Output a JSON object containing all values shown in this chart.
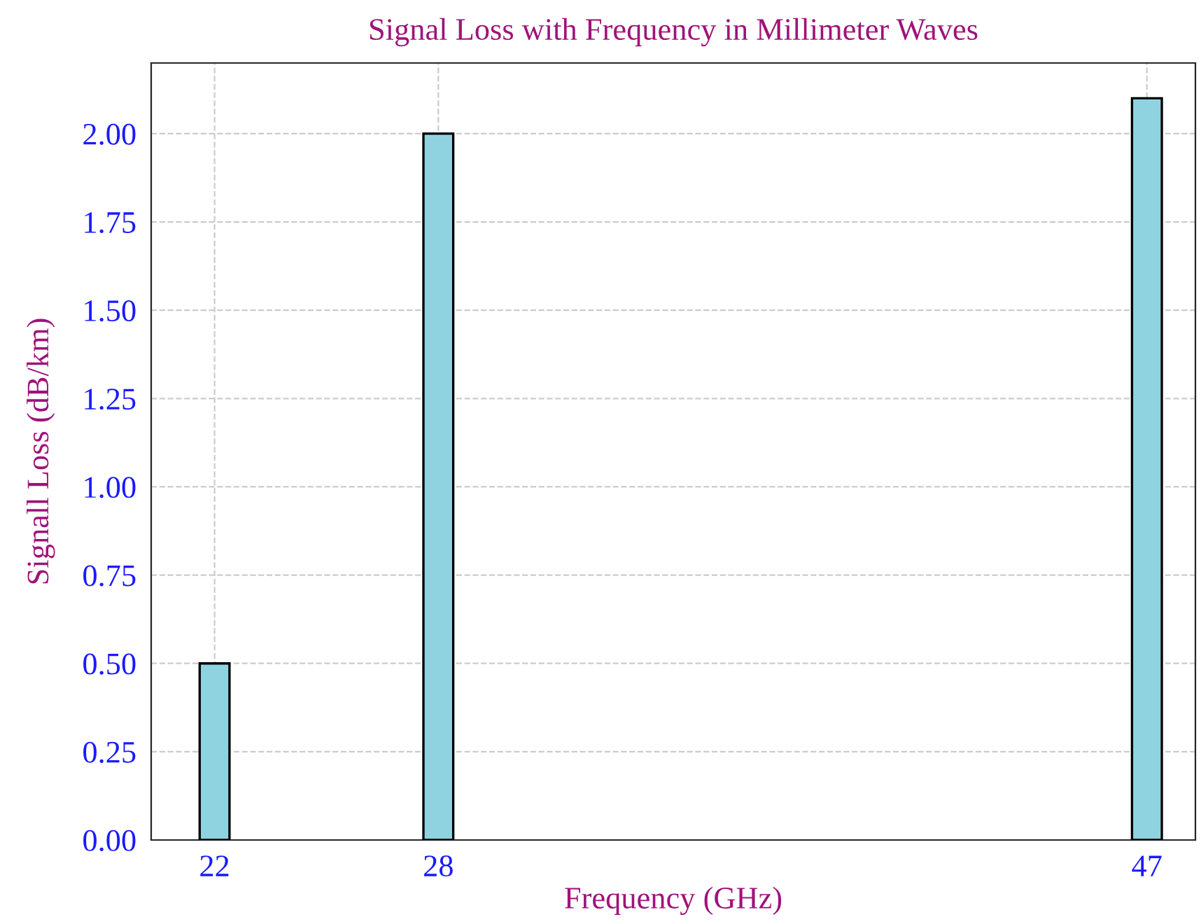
{
  "chart_data": {
    "type": "bar",
    "title": "Signal Loss with Frequency in Millimeter Waves",
    "xlabel": "Frequency (GHz)",
    "ylabel": "Signall Loss (dB/km)",
    "x": [
      22,
      28,
      47
    ],
    "values": [
      0.5,
      2.0,
      2.1
    ],
    "color": "#8fd3e0",
    "xlim": [
      20.3,
      48.3
    ],
    "xticks": [
      22,
      28,
      47
    ],
    "ylim": [
      0,
      2.2
    ],
    "yticks": [
      {
        "value": 0,
        "label": "0.00"
      },
      {
        "value": 0.25,
        "label": "0.25"
      },
      {
        "value": 0.5,
        "label": "0.50"
      },
      {
        "value": 0.75,
        "label": "0.75"
      },
      {
        "value": 1.0,
        "label": "1.00"
      },
      {
        "value": 1.25,
        "label": "1.25"
      },
      {
        "value": 1.5,
        "label": "1.50"
      },
      {
        "value": 1.75,
        "label": "1.75"
      },
      {
        "value": 2.0,
        "label": "2.00"
      }
    ],
    "grid": true
  }
}
